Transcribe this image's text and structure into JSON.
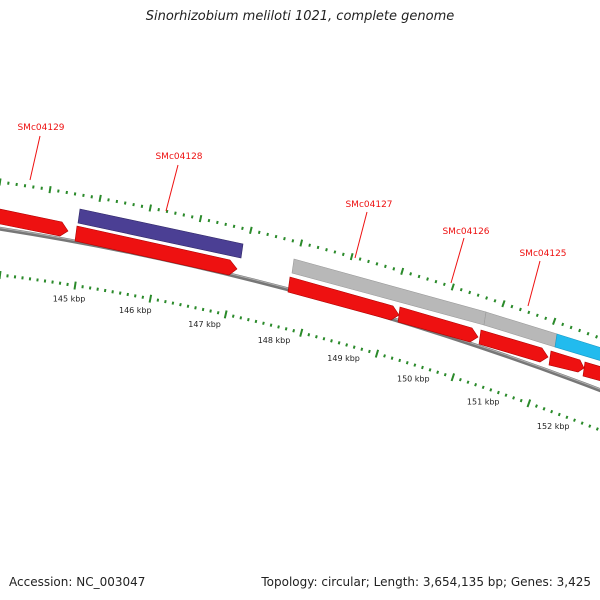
{
  "title": "Sinorhizobium meliloti 1021, complete genome",
  "accession": "Accession: NC_003047",
  "stats": "Topology: circular; Length: 3,654,135 bp; Genes: 3,425",
  "colors": {
    "cds": "#ee1111",
    "gene_purple": "#4b3f94",
    "gene_gray": "#b8b8b8",
    "gene_cyan": "#22bbee",
    "backbone": "#777777",
    "ticks": "#2a8a2a",
    "label": "#ee1111"
  },
  "gene_labels": [
    "SMc04129",
    "SMc04128",
    "SMc04127",
    "SMc04126",
    "SMc04125"
  ],
  "scale_labels": [
    "145 kbp",
    "146 kbp",
    "147 kbp",
    "148 kbp",
    "149 kbp",
    "150 kbp",
    "151 kbp",
    "152 kbp"
  ]
}
